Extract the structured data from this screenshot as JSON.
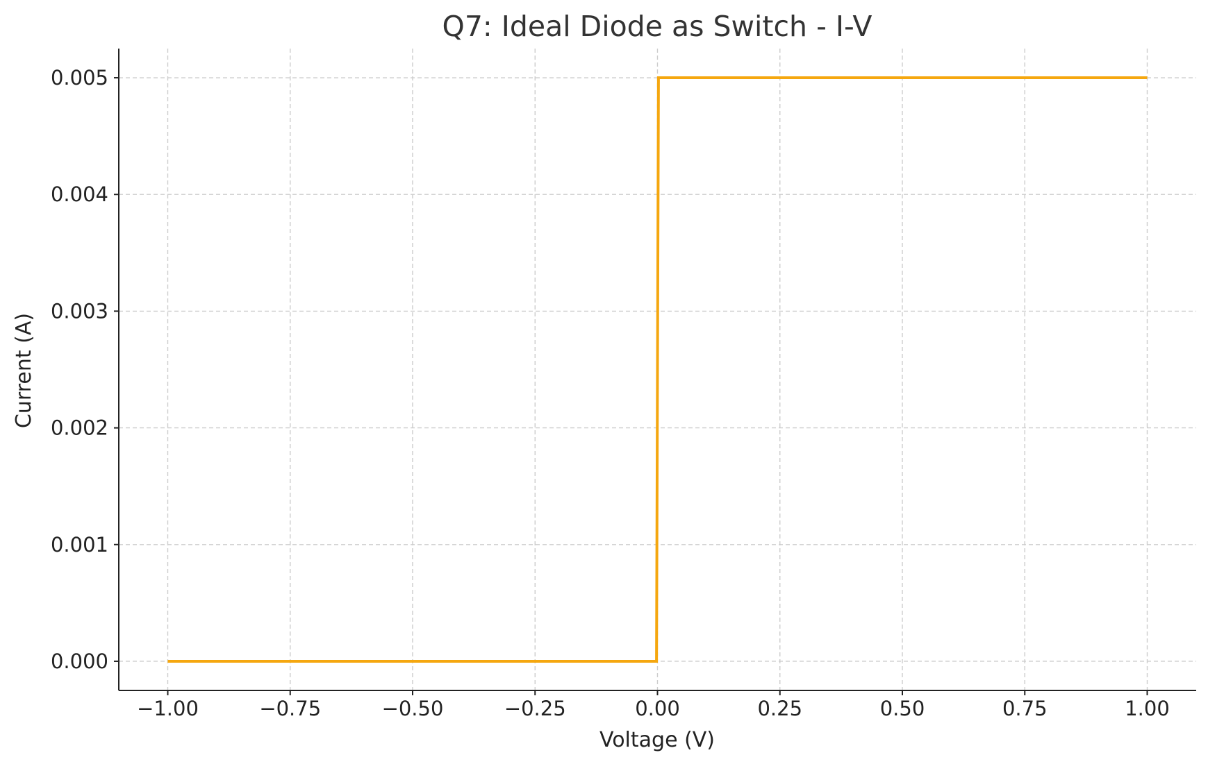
{
  "chart_data": {
    "type": "line",
    "title": "Q7: Ideal Diode as Switch - I-V",
    "xlabel": "Voltage (V)",
    "ylabel": "Current (A)",
    "xlim": [
      -1.1,
      1.1
    ],
    "ylim": [
      -0.00025,
      0.00525
    ],
    "xticks": [
      -1.0,
      -0.75,
      -0.5,
      -0.25,
      0.0,
      0.25,
      0.5,
      0.75,
      1.0
    ],
    "xtick_labels": [
      "−1.00",
      "−0.75",
      "−0.50",
      "−0.25",
      "0.00",
      "0.25",
      "0.50",
      "0.75",
      "1.00"
    ],
    "yticks": [
      0.0,
      0.001,
      0.002,
      0.003,
      0.004,
      0.005
    ],
    "ytick_labels": [
      "0.000",
      "0.001",
      "0.002",
      "0.003",
      "0.004",
      "0.005"
    ],
    "grid": true,
    "legend": "none",
    "series": [
      {
        "color": "#F5A70F",
        "x": [
          -1.0,
          -0.002,
          0.002,
          1.0
        ],
        "y": [
          0.0,
          0.0,
          0.005,
          0.005
        ]
      }
    ]
  }
}
